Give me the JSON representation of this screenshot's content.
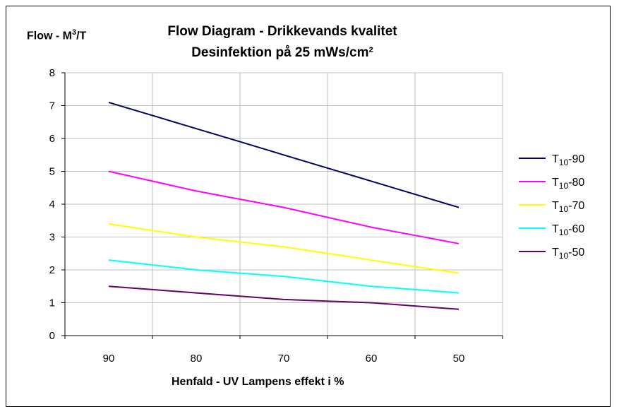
{
  "chart_data": {
    "type": "line",
    "title": "Flow Diagram - Drikkevands kvalitet",
    "subtitle": "Desinfektion på 25 mWs/cm²",
    "ylabel": {
      "prefix": "Flow  - M",
      "sup": "3",
      "suffix": "/T"
    },
    "xlabel": "Henfald - UV Lampens effekt i %",
    "categories": [
      "90",
      "80",
      "70",
      "60",
      "50"
    ],
    "x": [
      90,
      85,
      80,
      75,
      70,
      65,
      60,
      55,
      50
    ],
    "ylim": [
      0,
      8
    ],
    "yticks": [
      "0",
      "1",
      "2",
      "3",
      "4",
      "5",
      "6",
      "7",
      "8"
    ],
    "grid": true,
    "legend_position": "right",
    "series": [
      {
        "name": "T10-90",
        "label_main": "T",
        "label_sub": "10",
        "label_tail": "-90",
        "color": "#000066",
        "values": [
          7.1,
          6.7,
          6.3,
          5.9,
          5.5,
          5.1,
          4.7,
          4.3,
          3.9
        ]
      },
      {
        "name": "T10-80",
        "label_main": "T",
        "label_sub": "10",
        "label_tail": "-80",
        "color": "#ff00ff",
        "values": [
          5.0,
          4.7,
          4.4,
          4.15,
          3.9,
          3.6,
          3.3,
          3.05,
          2.8
        ]
      },
      {
        "name": "T10-70",
        "label_main": "T",
        "label_sub": "10",
        "label_tail": "-70",
        "color": "#ffff00",
        "values": [
          3.4,
          3.2,
          3.0,
          2.85,
          2.7,
          2.5,
          2.3,
          2.1,
          1.9
        ]
      },
      {
        "name": "T10-60",
        "label_main": "T",
        "label_sub": "10",
        "label_tail": "-60",
        "color": "#00ffff",
        "values": [
          2.3,
          2.15,
          2.0,
          1.9,
          1.8,
          1.65,
          1.5,
          1.4,
          1.3
        ]
      },
      {
        "name": "T10-50",
        "label_main": "T",
        "label_sub": "10",
        "label_tail": "-50",
        "color": "#660066",
        "values": [
          1.5,
          1.4,
          1.3,
          1.2,
          1.1,
          1.05,
          1.0,
          0.9,
          0.8
        ]
      }
    ]
  }
}
